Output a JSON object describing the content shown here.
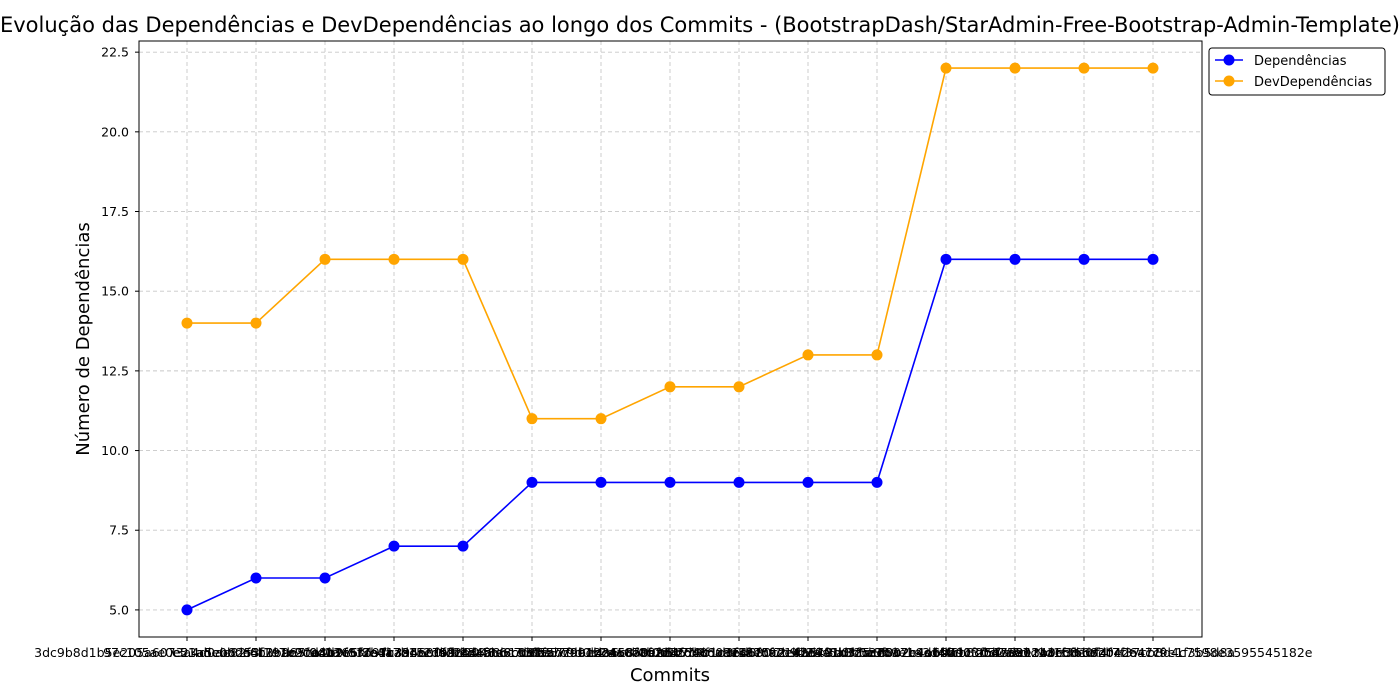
{
  "chart_data": {
    "type": "line",
    "title": "Evolução das Dependências e DevDependências ao longo dos Commits - (BootstrapDash/StarAdmin-Free-Bootstrap-Admin-Template)",
    "xlabel": "Commits",
    "ylabel": "Número de Dependências",
    "categories": [
      "3dc9b8d1b5e205a6073a4d0ae82f5c1b9e5f0c1a",
      "97c105ae0e23a5eb8253f791c90d4a1e6f2b8c7d",
      "e51ade0bdc6b3ba67ca1b9f83d97c3a5e0f6d2b4",
      "a4f1e7b2c9d0365f8e4a7b1c2d9f0e3a5b6c7d8e",
      "c8d2e5f7a1b3946e0f2c4d6a8b1e3f5a7c9d0b2e",
      "f1a3c5e7b9d2048e6c1a3f5b7d9e2c4a6b8f0d1c",
      "b2d4f6a8c0e1357f9b1d3a5c7e9f0b2d4c6a8e1f",
      "d3f5a7c9e1b2468a0c2e4f6b8d0a1c3e5f7b9d2a",
      "e4a6c8f0b2d3579b1d3f5a7c9e1b2d4f6a8c0e3b",
      "a5b7d9f1c3e4680c2e4a6b8d0f2c3e5a7b9d1f4c",
      "c6d8f0a2e4b5791d3f5b7c9e1a3d4f6b8c0e2a5d",
      "f7e9a1b3d5c6802e4a6c8d0f2b4e5a7c9d1f3b6e",
      "a8f0b2c4e6d7913f5b7d9e1a3c5f6b8d0e2a4c7f",
      "b9a1c3d5f7e8024a6c8e0f2b4d6a7c9e1f3b5d8a",
      "7a9c13b0e3d1bf4f7f37cb8d4c7598e3595545182e"
    ],
    "series": [
      {
        "name": "Dependências",
        "color": "#0000ff",
        "marker": "circle",
        "values": [
          5,
          6,
          6,
          7,
          7,
          9,
          9,
          9,
          9,
          9,
          9,
          16,
          16,
          16,
          16
        ]
      },
      {
        "name": "DevDependências",
        "color": "#ffa500",
        "marker": "circle",
        "values": [
          14,
          14,
          16,
          16,
          16,
          11,
          11,
          12,
          12,
          13,
          13,
          22,
          22,
          22,
          22
        ]
      }
    ],
    "ylim": [
      4.15,
      22.85
    ],
    "yticks": [
      5.0,
      7.5,
      10.0,
      12.5,
      15.0,
      17.5,
      20.0,
      22.5
    ],
    "ytick_labels": [
      "5.0",
      "7.5",
      "10.0",
      "12.5",
      "15.0",
      "17.5",
      "20.0",
      "22.5"
    ],
    "grid": true,
    "grid_color": "#c8c8c8",
    "legend_position": "upper-right-outside"
  }
}
